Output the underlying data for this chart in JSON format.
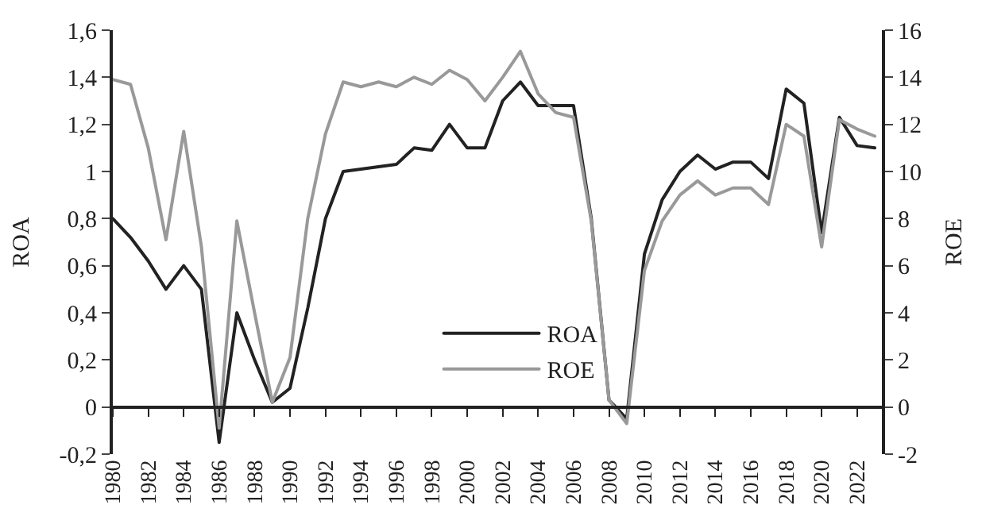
{
  "chart_data": {
    "type": "line",
    "x": [
      1980,
      1981,
      1982,
      1983,
      1984,
      1985,
      1986,
      1987,
      1988,
      1989,
      1990,
      1991,
      1992,
      1993,
      1994,
      1995,
      1996,
      1997,
      1998,
      1999,
      2000,
      2001,
      2002,
      2003,
      2004,
      2005,
      2006,
      2007,
      2008,
      2009,
      2010,
      2011,
      2012,
      2013,
      2014,
      2015,
      2016,
      2017,
      2018,
      2019,
      2020,
      2021,
      2022,
      2023
    ],
    "series": [
      {
        "name": "ROA",
        "color": "#222222",
        "values": [
          0.8,
          0.72,
          0.62,
          0.5,
          0.6,
          0.5,
          -0.15,
          0.4,
          0.2,
          0.02,
          0.08,
          0.42,
          0.8,
          1.0,
          1.01,
          1.02,
          1.03,
          1.1,
          1.09,
          1.2,
          1.1,
          1.1,
          1.3,
          1.38,
          1.28,
          1.28,
          1.28,
          0.8,
          0.03,
          -0.05,
          0.65,
          0.88,
          1.0,
          1.07,
          1.01,
          1.04,
          1.04,
          0.97,
          1.35,
          1.29,
          0.74,
          1.23,
          1.11,
          1.1
        ]
      },
      {
        "name": "ROE",
        "color": "#999999",
        "axis": "y2",
        "values": [
          13.9,
          13.7,
          11.0,
          7.1,
          11.7,
          6.8,
          -0.9,
          7.9,
          4.0,
          0.2,
          2.1,
          8.0,
          11.6,
          13.8,
          13.6,
          13.8,
          13.6,
          14.0,
          13.7,
          14.3,
          13.9,
          13.0,
          14.0,
          15.1,
          13.3,
          12.5,
          12.3,
          7.9,
          0.3,
          -0.7,
          5.8,
          7.9,
          9.0,
          9.6,
          9.0,
          9.3,
          9.3,
          8.6,
          12.0,
          11.5,
          6.8,
          12.2,
          11.8,
          11.5
        ]
      }
    ],
    "ylabel": "ROA",
    "y2label": "ROE",
    "xlim": [
      1980,
      2023.4
    ],
    "xticks": [
      1980,
      1982,
      1984,
      1986,
      1988,
      1990,
      1992,
      1994,
      1996,
      1998,
      2000,
      2002,
      2004,
      2006,
      2008,
      2010,
      2012,
      2014,
      2016,
      2018,
      2020,
      2022
    ],
    "ylim": [
      -0.2,
      1.6
    ],
    "yticks": [
      {
        "value": -0.2,
        "label": "-0,2"
      },
      0,
      {
        "value": 0.2,
        "label": "0,2"
      },
      {
        "value": 0.4,
        "label": "0,4"
      },
      {
        "value": 0.6,
        "label": "0,6"
      },
      {
        "value": 0.8,
        "label": "0,8"
      },
      1,
      {
        "value": 1.2,
        "label": "1,2"
      },
      {
        "value": 1.4,
        "label": "1,4"
      },
      {
        "value": 1.6,
        "label": "1,6"
      }
    ],
    "y2lim": [
      -2,
      16
    ],
    "y2ticks": [
      -2,
      0,
      2,
      4,
      6,
      8,
      10,
      12,
      14,
      16
    ],
    "grid": false,
    "legend": "bottom",
    "marker": "none",
    "line_style": "solid"
  }
}
